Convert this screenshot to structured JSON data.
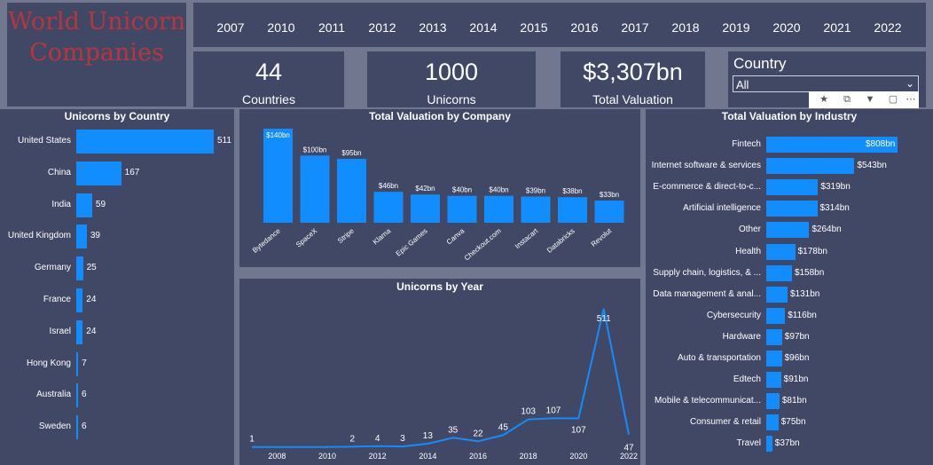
{
  "title_lines": [
    "World Unicorn",
    "Companies"
  ],
  "years": [
    "2007",
    "2010",
    "2011",
    "2012",
    "2013",
    "2014",
    "2015",
    "2016",
    "2017",
    "2018",
    "2019",
    "2020",
    "2021",
    "2022"
  ],
  "cards": [
    {
      "value": "44",
      "label": "Countries"
    },
    {
      "value": "1000",
      "label": "Unicorns"
    },
    {
      "value": "$3,307bn",
      "label": "Total Valuation"
    }
  ],
  "country_filter": {
    "label": "Country",
    "selected": "All"
  },
  "colors": {
    "bar": "#118dff",
    "panel": "#414866",
    "background": "#70778f",
    "title": "#b8353f"
  },
  "chart_data": [
    {
      "type": "bar",
      "title": "Unicorns by Country",
      "orientation": "horizontal",
      "categories": [
        "United States",
        "China",
        "India",
        "United Kingdom",
        "Germany",
        "France",
        "Israel",
        "Hong Kong",
        "Australia",
        "Sweden"
      ],
      "values": [
        511,
        167,
        59,
        39,
        25,
        24,
        24,
        7,
        6,
        6
      ]
    },
    {
      "type": "bar",
      "title": "Total Valuation by Company",
      "categories": [
        "Bytedance",
        "SpaceX",
        "Stripe",
        "Klarna",
        "Epic Games",
        "Canva",
        "Checkout.com",
        "Instacart",
        "Databricks",
        "Revolut"
      ],
      "values": [
        140,
        100,
        95,
        46,
        42,
        40,
        40,
        39,
        38,
        33
      ],
      "labels": [
        "$140bn",
        "$100bn",
        "$95bn",
        "$46bn",
        "$42bn",
        "$40bn",
        "$40bn",
        "$39bn",
        "$38bn",
        "$33bn"
      ]
    },
    {
      "type": "line",
      "title": "Unicorns by Year",
      "x": [
        2007,
        2010,
        2011,
        2012,
        2013,
        2014,
        2015,
        2016,
        2017,
        2018,
        2019,
        2020,
        2021,
        2022
      ],
      "values": [
        1,
        1,
        2,
        4,
        3,
        13,
        35,
        22,
        45,
        103,
        107,
        107,
        511,
        47
      ],
      "labels": [
        "1",
        "",
        "2",
        "4",
        "3",
        "13",
        "35",
        "22",
        "45",
        "103",
        "107",
        "107",
        "511",
        "47"
      ],
      "xticks": [
        "2008",
        "2010",
        "2012",
        "2014",
        "2016",
        "2018",
        "2020",
        "2022"
      ],
      "tick_values": [
        2008,
        2010,
        2012,
        2014,
        2016,
        2018,
        2020,
        2022
      ]
    },
    {
      "type": "bar",
      "title": "Total Valuation by Industry",
      "orientation": "horizontal",
      "categories": [
        "Fintech",
        "Internet software & services",
        "E-commerce & direct-to-c...",
        "Artificial intelligence",
        "Other",
        "Health",
        "Supply chain, logistics, & ...",
        "Data management & anal...",
        "Cybersecurity",
        "Hardware",
        "Auto & transportation",
        "Edtech",
        "Mobile & telecommunicat...",
        "Consumer & retail",
        "Travel"
      ],
      "values": [
        808,
        543,
        319,
        314,
        264,
        178,
        158,
        131,
        116,
        97,
        96,
        91,
        81,
        75,
        37
      ],
      "labels": [
        "$808bn",
        "$543bn",
        "$319bn",
        "$314bn",
        "$264bn",
        "$178bn",
        "$158bn",
        "$131bn",
        "$116bn",
        "$97bn",
        "$96bn",
        "$91bn",
        "$81bn",
        "$75bn",
        "$37bn"
      ]
    }
  ]
}
